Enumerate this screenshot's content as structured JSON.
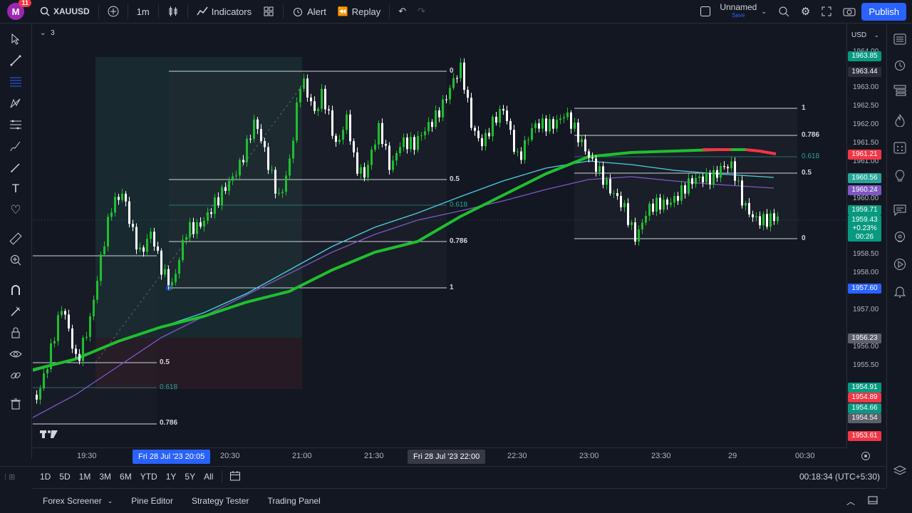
{
  "topbar": {
    "avatar": "M",
    "notifications": "11",
    "symbol": "XAUUSD",
    "interval": "1m",
    "indicators": "Indicators",
    "alert": "Alert",
    "replay": "Replay",
    "layout_name": "Unnamed",
    "layout_status": "Save",
    "publish": "Publish"
  },
  "chart": {
    "indicator_count": "3",
    "currency": "USD",
    "fib_left_levels": [
      "0",
      "0.5",
      "0.618",
      "0.786",
      "1"
    ],
    "fib_lower_levels": [
      "0.5",
      "0.618",
      "0.786"
    ],
    "fib_right_levels": [
      "1",
      "0.786",
      "0.618",
      "0.5",
      "0"
    ]
  },
  "price_axis": {
    "labels": [
      "1964.00",
      "1963.00",
      "1962.50",
      "1962.00",
      "1961.50",
      "1961.00",
      "1960.00",
      "1958.50",
      "1958.00",
      "1957.00",
      "1956.00",
      "1955.50"
    ],
    "tags": [
      {
        "value": "1963.85",
        "color": "#089981"
      },
      {
        "value": "1963.44",
        "color": "#2a2e39"
      },
      {
        "value": "1961.21",
        "color": "#f23645"
      },
      {
        "value": "1960.56",
        "color": "#26a69a"
      },
      {
        "value": "1960.24",
        "color": "#7e57c2"
      },
      {
        "value": "1959.71",
        "color": "#089981"
      },
      {
        "value": "1959.43",
        "sub1": "+0.23%",
        "sub2": "00:26",
        "color": "#089981"
      },
      {
        "value": "1957.60",
        "color": "#2962ff"
      },
      {
        "value": "1956.23",
        "color": "#5d606b"
      },
      {
        "value": "1954.91",
        "color": "#089981"
      },
      {
        "value": "1954.89",
        "color": "#f23645"
      },
      {
        "value": "1954.66",
        "color": "#089981"
      },
      {
        "value": "1954.54",
        "color": "#5d606b"
      },
      {
        "value": "1953.61",
        "color": "#f23645"
      }
    ]
  },
  "time_axis": {
    "labels": [
      "19:30",
      "20:30",
      "21:00",
      "21:30",
      "22:30",
      "23:00",
      "23:30",
      "29",
      "00:30"
    ],
    "tag1": "Fri 28 Jul '23   20:05",
    "tag2": "Fri 28 Jul '23   22:00"
  },
  "range_bar": {
    "ranges": [
      "1D",
      "5D",
      "1M",
      "3M",
      "6M",
      "YTD",
      "1Y",
      "5Y",
      "All"
    ],
    "clock": "00:18:34 (UTC+5:30)"
  },
  "bottom_panel": {
    "tabs": [
      "Forex Screener",
      "Pine Editor",
      "Strategy Tester",
      "Trading Panel"
    ]
  },
  "colors": {
    "ema_fast": "#1fbf2e",
    "ema_mid": "#4dd0e1",
    "ema_slow": "#7e57c2",
    "bull": "#1fbf2e",
    "bear": "#ffffff"
  }
}
